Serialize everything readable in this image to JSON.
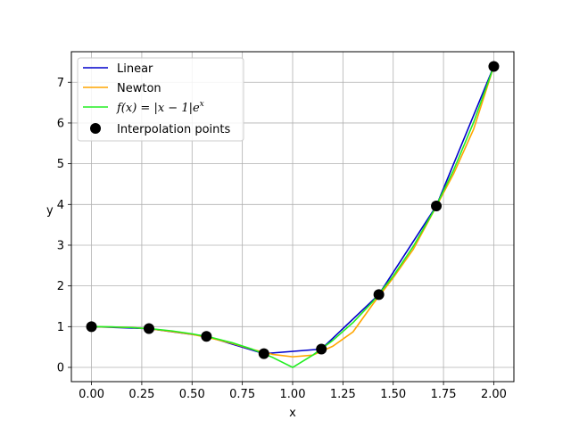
{
  "chart_data": {
    "type": "line",
    "xlabel": "x",
    "ylabel": "y",
    "xlim": [
      -0.1,
      2.1
    ],
    "ylim": [
      -0.35,
      7.75
    ],
    "xticks": [
      0.0,
      0.25,
      0.5,
      0.75,
      1.0,
      1.25,
      1.5,
      1.75,
      2.0
    ],
    "xtick_labels": [
      "0.00",
      "0.25",
      "0.50",
      "0.75",
      "1.00",
      "1.25",
      "1.50",
      "1.75",
      "2.00"
    ],
    "yticks": [
      0,
      1,
      2,
      3,
      4,
      5,
      6,
      7
    ],
    "ytick_labels": [
      "0",
      "1",
      "2",
      "3",
      "4",
      "5",
      "6",
      "7"
    ],
    "grid": true,
    "legend_position": "top-left",
    "series": [
      {
        "name": "Linear",
        "kind": "line",
        "color": "#0000cc",
        "x": [
          0.0,
          0.2857,
          0.5714,
          0.8571,
          1.1429,
          1.4286,
          1.7143,
          2.0
        ],
        "y": [
          1.0,
          0.952,
          0.762,
          0.337,
          0.449,
          1.788,
          3.963,
          7.389
        ]
      },
      {
        "name": "Newton",
        "kind": "line",
        "color": "#ffa500",
        "x": [
          0.0,
          0.1,
          0.2,
          0.3,
          0.4,
          0.5,
          0.6,
          0.7,
          0.8,
          0.9,
          1.0,
          1.1,
          1.2,
          1.3,
          1.4,
          1.5,
          1.6,
          1.7,
          1.8,
          1.9,
          2.0
        ],
        "y": [
          1.0,
          0.99,
          0.98,
          0.94,
          0.88,
          0.81,
          0.71,
          0.59,
          0.44,
          0.32,
          0.26,
          0.3,
          0.52,
          0.87,
          1.56,
          2.2,
          2.9,
          3.82,
          4.75,
          5.85,
          7.39
        ]
      },
      {
        "name": "f(x) = |x − 1|eˣ",
        "kind": "line",
        "color": "#22ee22",
        "x": [
          0.0,
          0.1,
          0.2,
          0.3,
          0.4,
          0.5,
          0.6,
          0.7,
          0.8,
          0.9,
          1.0,
          1.1,
          1.2,
          1.3,
          1.4,
          1.5,
          1.6,
          1.7,
          1.8,
          1.9,
          2.0
        ],
        "y": [
          1.0,
          0.995,
          0.977,
          0.945,
          0.895,
          0.824,
          0.729,
          0.604,
          0.445,
          0.246,
          0.0,
          0.3,
          0.664,
          1.1,
          1.622,
          2.241,
          2.972,
          3.832,
          4.84,
          6.018,
          7.389
        ]
      },
      {
        "name": "Interpolation points",
        "kind": "scatter",
        "color": "#000000",
        "x": [
          0.0,
          0.2857,
          0.5714,
          0.8571,
          1.1429,
          1.4286,
          1.7143,
          2.0
        ],
        "y": [
          1.0,
          0.952,
          0.762,
          0.337,
          0.449,
          1.788,
          3.963,
          7.389
        ]
      }
    ],
    "legend": {
      "linear": "Linear",
      "newton": "Newton",
      "f_prefix": "f(x) = |x − 1|e",
      "f_exp": "x",
      "points": "Interpolation points"
    }
  }
}
